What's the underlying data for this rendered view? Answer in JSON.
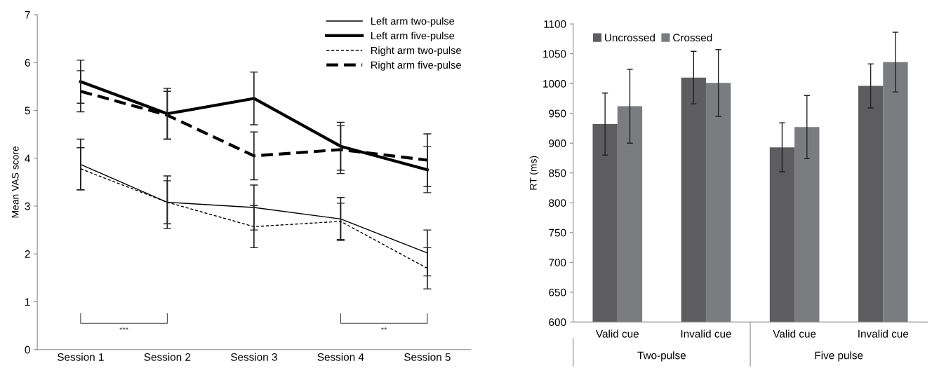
{
  "chart_data": [
    {
      "type": "line",
      "ylabel": "Mean VAS score",
      "categories": [
        "Session 1",
        "Session 2",
        "Session 3",
        "Session 4",
        "Session 5"
      ],
      "ylim": [
        0,
        7
      ],
      "yticks": [
        0,
        1,
        2,
        3,
        4,
        5,
        6,
        7
      ],
      "grid": false,
      "legend": "top right",
      "marker": "none",
      "series": [
        {
          "name": "Left arm two-pulse",
          "color": "#000000",
          "line_style": "solid",
          "values": [
            3.87,
            3.08,
            2.97,
            2.73,
            2.02
          ],
          "errors": [
            0.53,
            0.55,
            0.47,
            0.45,
            0.48
          ]
        },
        {
          "name": "Left arm five-pulse",
          "color": "#000000",
          "line_style": "solid",
          "values": [
            5.6,
            4.93,
            5.25,
            4.25,
            3.76
          ],
          "errors": [
            0.45,
            0.53,
            0.55,
            0.5,
            0.48
          ]
        },
        {
          "name": "Right arm two-pulse",
          "color": "#000000",
          "line_style": "dotted",
          "values": [
            3.78,
            3.08,
            2.57,
            2.68,
            1.7
          ],
          "errors": [
            0.44,
            0.45,
            0.44,
            0.38,
            0.43
          ]
        },
        {
          "name": "Right arm five-pulse",
          "color": "#000000",
          "line_style": "dashed",
          "values": [
            5.4,
            4.9,
            4.05,
            4.18,
            3.96
          ],
          "errors": [
            0.43,
            0.5,
            0.5,
            0.5,
            0.55
          ]
        }
      ],
      "annotations": [
        "***",
        "**"
      ]
    },
    {
      "type": "bar",
      "ylabel": "RT (ms)",
      "categories": [
        "Valid cue",
        "Invalid cue",
        "Valid cue",
        "Invalid cue"
      ],
      "ylim": [
        600,
        1100
      ],
      "yticks": [
        600,
        650,
        700,
        750,
        800,
        850,
        900,
        950,
        1000,
        1050,
        1100
      ],
      "grid": false,
      "legend": "top left",
      "series": [
        {
          "name": "Uncrossed",
          "color": "#5d5d60",
          "values": [
            932,
            1010,
            893,
            996
          ],
          "errors": [
            52,
            44,
            41,
            37
          ]
        },
        {
          "name": "Crossed",
          "color": "#7b7c80",
          "values": [
            962,
            1001,
            927,
            1036
          ],
          "errors": [
            62,
            56,
            53,
            50
          ]
        }
      ],
      "annotations": [
        "Two-pulse",
        "Five pulse"
      ]
    }
  ]
}
